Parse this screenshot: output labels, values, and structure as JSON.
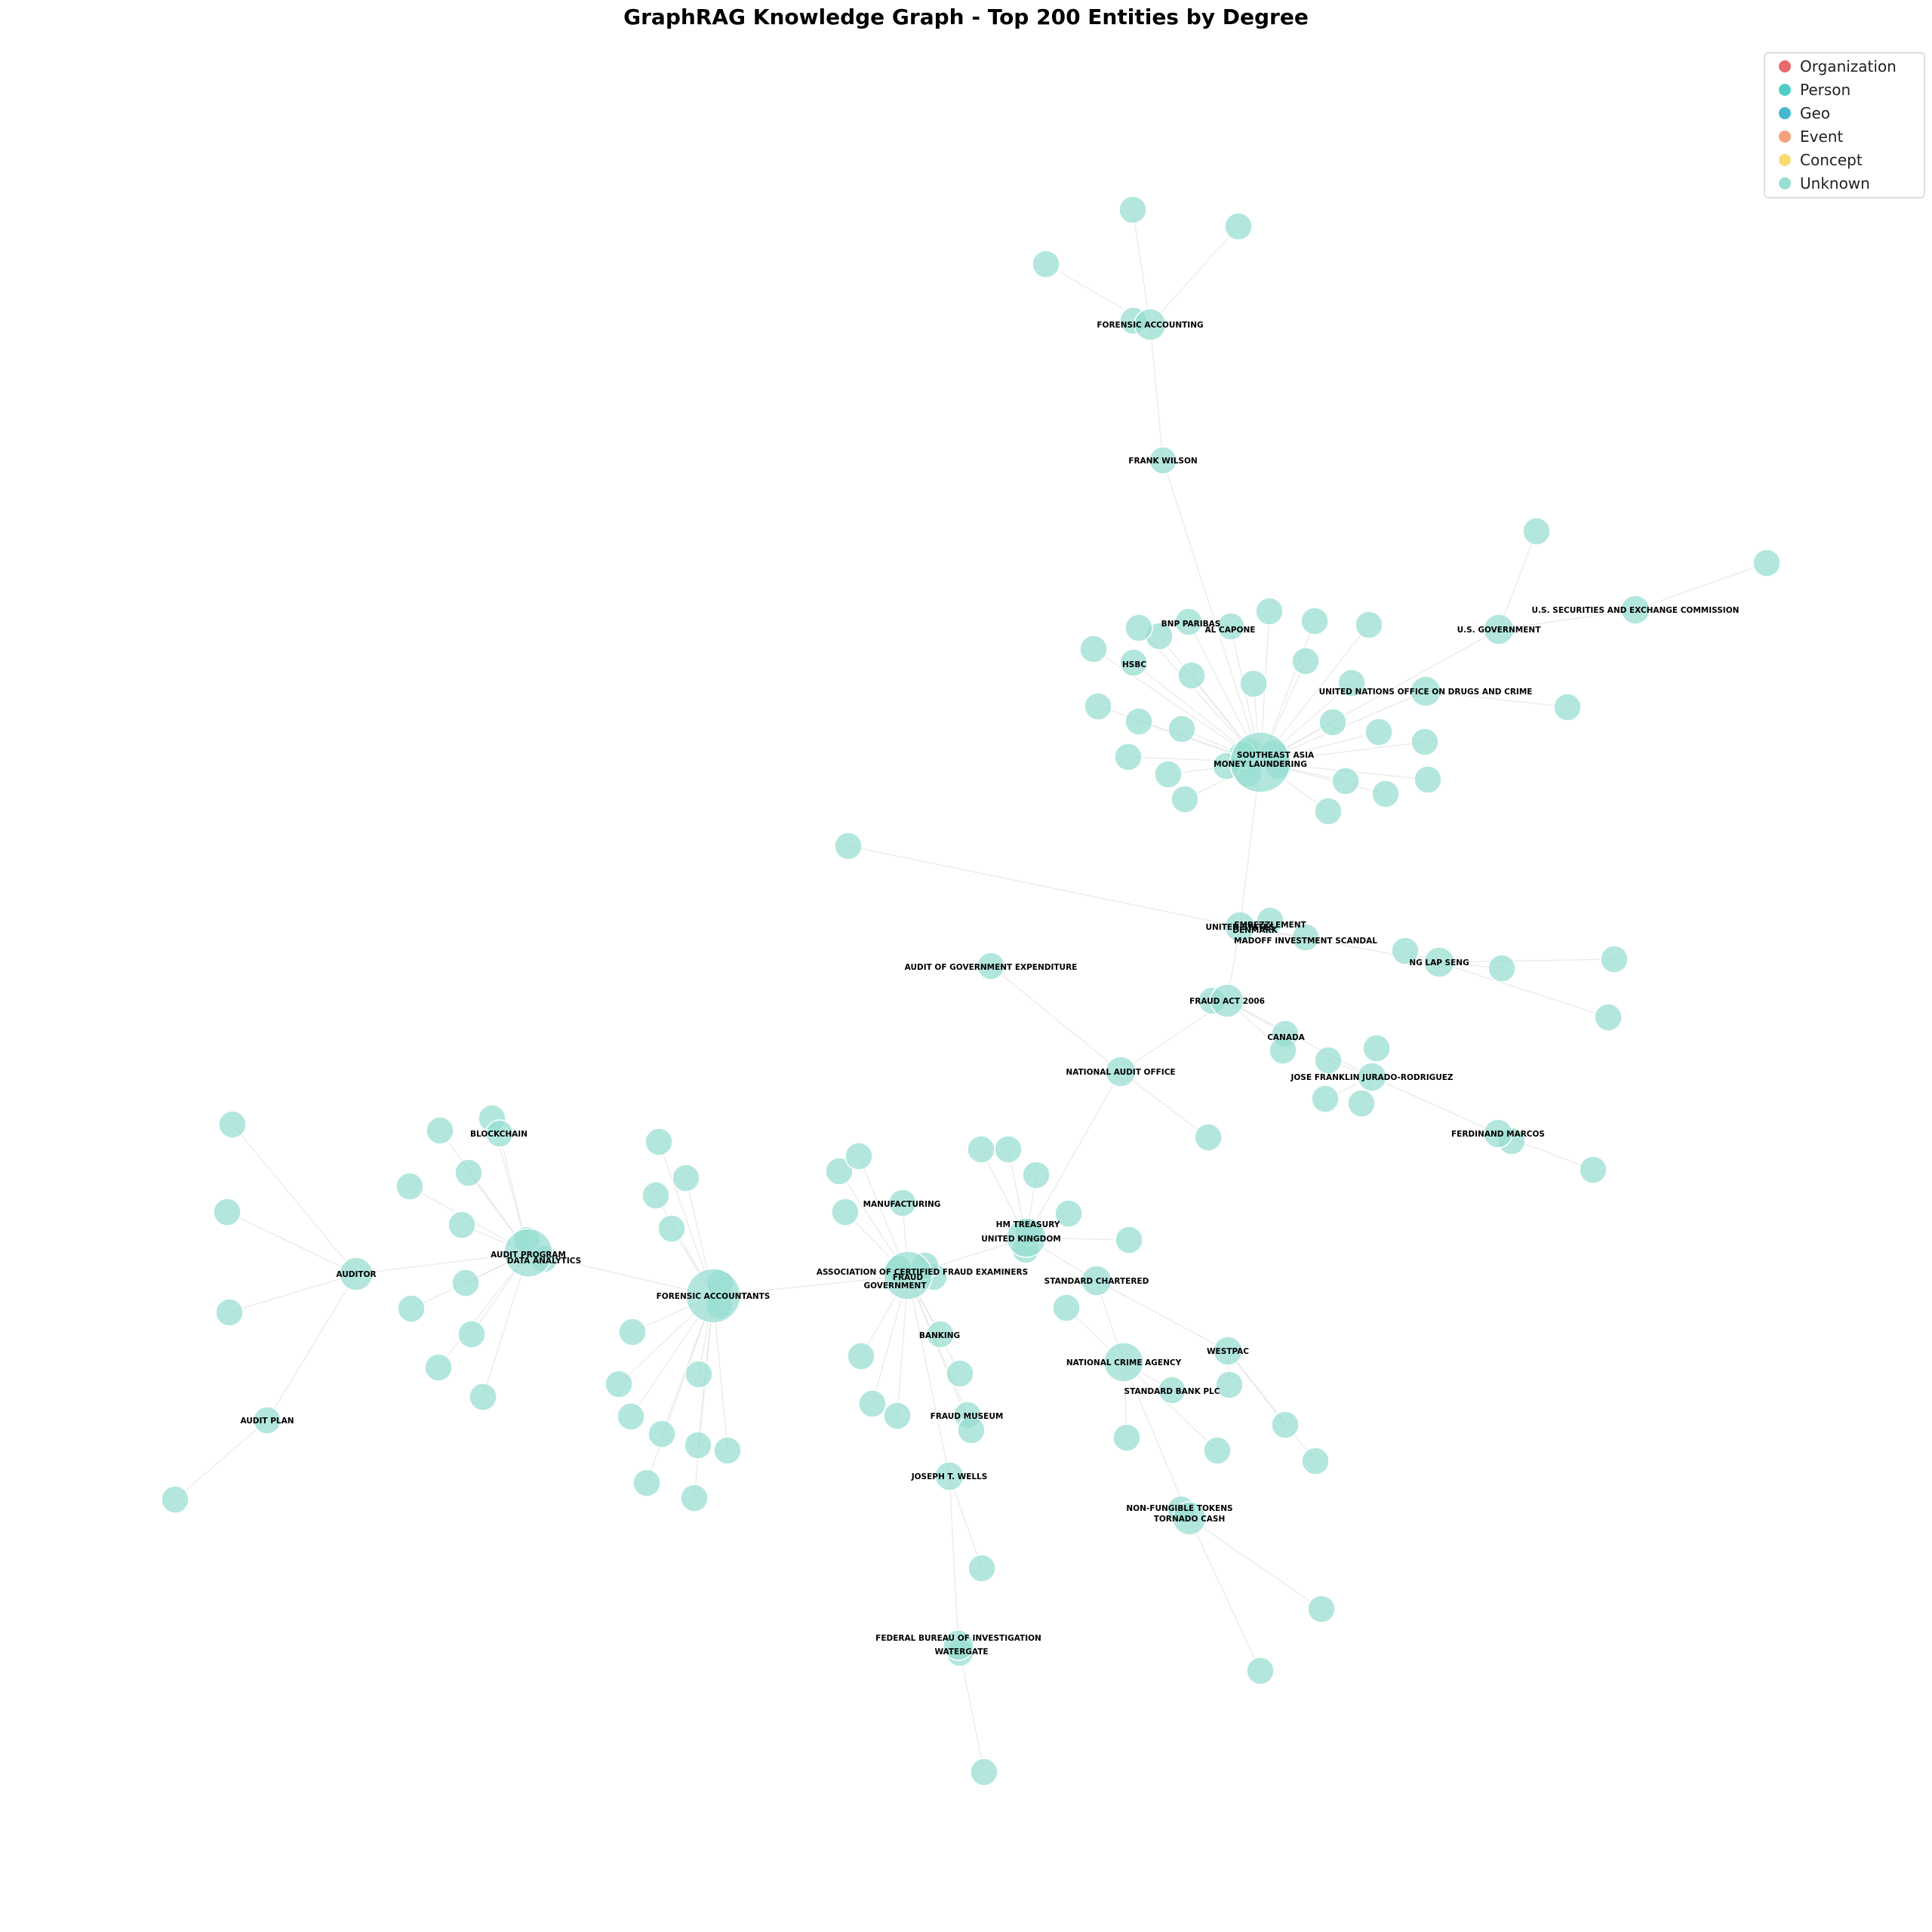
{
  "title": "GraphRAG Knowledge Graph - Top 200 Entities by Degree",
  "legend": [
    {
      "label": "Organization",
      "color": "#E8696B"
    },
    {
      "label": "Person",
      "color": "#4ECDC4"
    },
    {
      "label": "Geo",
      "color": "#45B7D1"
    },
    {
      "label": "Event",
      "color": "#F4A07B"
    },
    {
      "label": "Concept",
      "color": "#F7DC6F"
    },
    {
      "label": "Unknown",
      "color": "#96DED1"
    }
  ],
  "node_color": "#96DED1",
  "labels": {
    "forensic_accounting": "FORENSIC ACCOUNTING",
    "frank_wilson": "FRANK WILSON",
    "bnp_paribas": "BNP PARIBAS",
    "al_capone": "AL CAPONE",
    "hsbc": "HSBC",
    "us_government": "U.S. GOVERNMENT",
    "us_sec": "U.S. SECURITIES AND EXCHANGE COMMISSION",
    "unodc": "UNITED NATIONS OFFICE ON DRUGS AND CRIME",
    "southeast_asia": "SOUTHEAST ASIA",
    "money_laundering": "MONEY LAUNDERING",
    "united_states": "UNITED STATES",
    "embezzlement": "EMBEZZLEMENT",
    "denmark": "DENMARK",
    "madoff": "MADOFF INVESTMENT SCANDAL",
    "ng_lap_seng": "NG LAP SENG",
    "audit_gov_exp": "AUDIT OF GOVERNMENT EXPENDITURE",
    "fraud_act": "FRAUD ACT 2006",
    "canada": "CANADA",
    "nao": "NATIONAL AUDIT OFFICE",
    "jurado": "JOSE FRANKLIN JURADO-RODRIGUEZ",
    "marcos": "FERDINAND MARCOS",
    "blockchain": "BLOCKCHAIN",
    "manufacturing": "MANUFACTURING",
    "hm_treasury": "HM TREASURY",
    "uk": "UNITED KINGDOM",
    "auditor": "AUDITOR",
    "audit_program": "AUDIT PROGRAM",
    "data_analytics": "DATA ANALYTICS",
    "acfe": "ASSOCIATION OF CERTIFIED FRAUD EXAMINERS",
    "fraud": "FRAUD",
    "government": "GOVERNMENT",
    "standard_chartered": "STANDARD CHARTERED",
    "forensic_accountants": "FORENSIC ACCOUNTANTS",
    "banking": "BANKING",
    "nca": "NATIONAL CRIME AGENCY",
    "westpac": "WESTPAC",
    "standard_bank": "STANDARD BANK PLC",
    "fraud_museum": "FRAUD MUSEUM",
    "audit_plan": "AUDIT PLAN",
    "joseph_wells": "JOSEPH T. WELLS",
    "nft": "NON-FUNGIBLE TOKENS",
    "tornado_cash": "TORNADO CASH",
    "fbi": "FEDERAL BUREAU OF INVESTIGATION",
    "watergate": "WATERGATE"
  }
}
